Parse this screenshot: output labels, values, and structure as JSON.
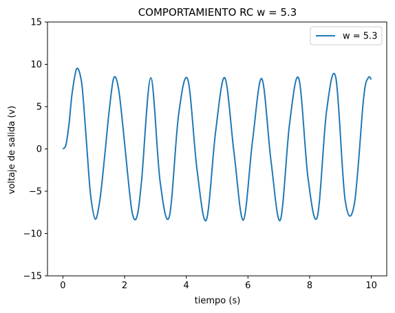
{
  "chart_data": {
    "type": "line",
    "title": "COMPORTAMIENTO RC w = 5.3",
    "xlabel": "tiempo (s)",
    "ylabel": "voltaje de salida (v)",
    "xlim": [
      -0.5,
      10.5
    ],
    "ylim": [
      -15,
      15
    ],
    "xticks": [
      0,
      2,
      4,
      6,
      8,
      10
    ],
    "yticks": [
      -15,
      -10,
      -5,
      0,
      5,
      10,
      15
    ],
    "xtick_labels": [
      "0",
      "2",
      "4",
      "6",
      "8",
      "10"
    ],
    "ytick_labels": [
      "−15",
      "−10",
      "−5",
      "0",
      "5",
      "10",
      "15"
    ],
    "grid": false,
    "legend_position": "top-right",
    "series": [
      {
        "name": "w = 5.3",
        "color": "#1f77b4",
        "x": [
          0,
          0.1,
          0.2,
          0.3,
          0.45,
          0.6,
          0.7,
          0.8,
          0.9,
          1.05,
          1.2,
          1.35,
          1.5,
          1.65,
          1.8,
          1.95,
          2.1,
          2.25,
          2.4,
          2.55,
          2.85,
          3.15,
          3.45,
          3.75,
          4.05,
          4.35,
          4.65,
          4.95,
          5.25,
          5.55,
          5.85,
          6.15,
          6.45,
          6.75,
          7.05,
          7.35,
          7.65,
          7.95,
          8.25,
          8.55,
          8.85,
          9.15,
          9.45,
          9.75,
          9.9,
          10.0
        ],
        "y": [
          0.0,
          0.5,
          3.0,
          6.6,
          9.5,
          8.0,
          4.0,
          -1.0,
          -5.5,
          -8.3,
          -6.0,
          -1.0,
          4.5,
          8.4,
          7.2,
          2.5,
          -3.0,
          -7.6,
          -8.0,
          -3.8,
          8.4,
          -3.8,
          -8.0,
          4.0,
          8.2,
          -2.5,
          -8.4,
          2.0,
          8.4,
          -0.5,
          -8.4,
          1.0,
          8.3,
          -1.5,
          -8.4,
          3.0,
          8.3,
          -3.5,
          -8.0,
          4.5,
          8.4,
          -6.0,
          -6.5,
          6.0,
          8.4,
          8.2
        ]
      }
    ]
  }
}
